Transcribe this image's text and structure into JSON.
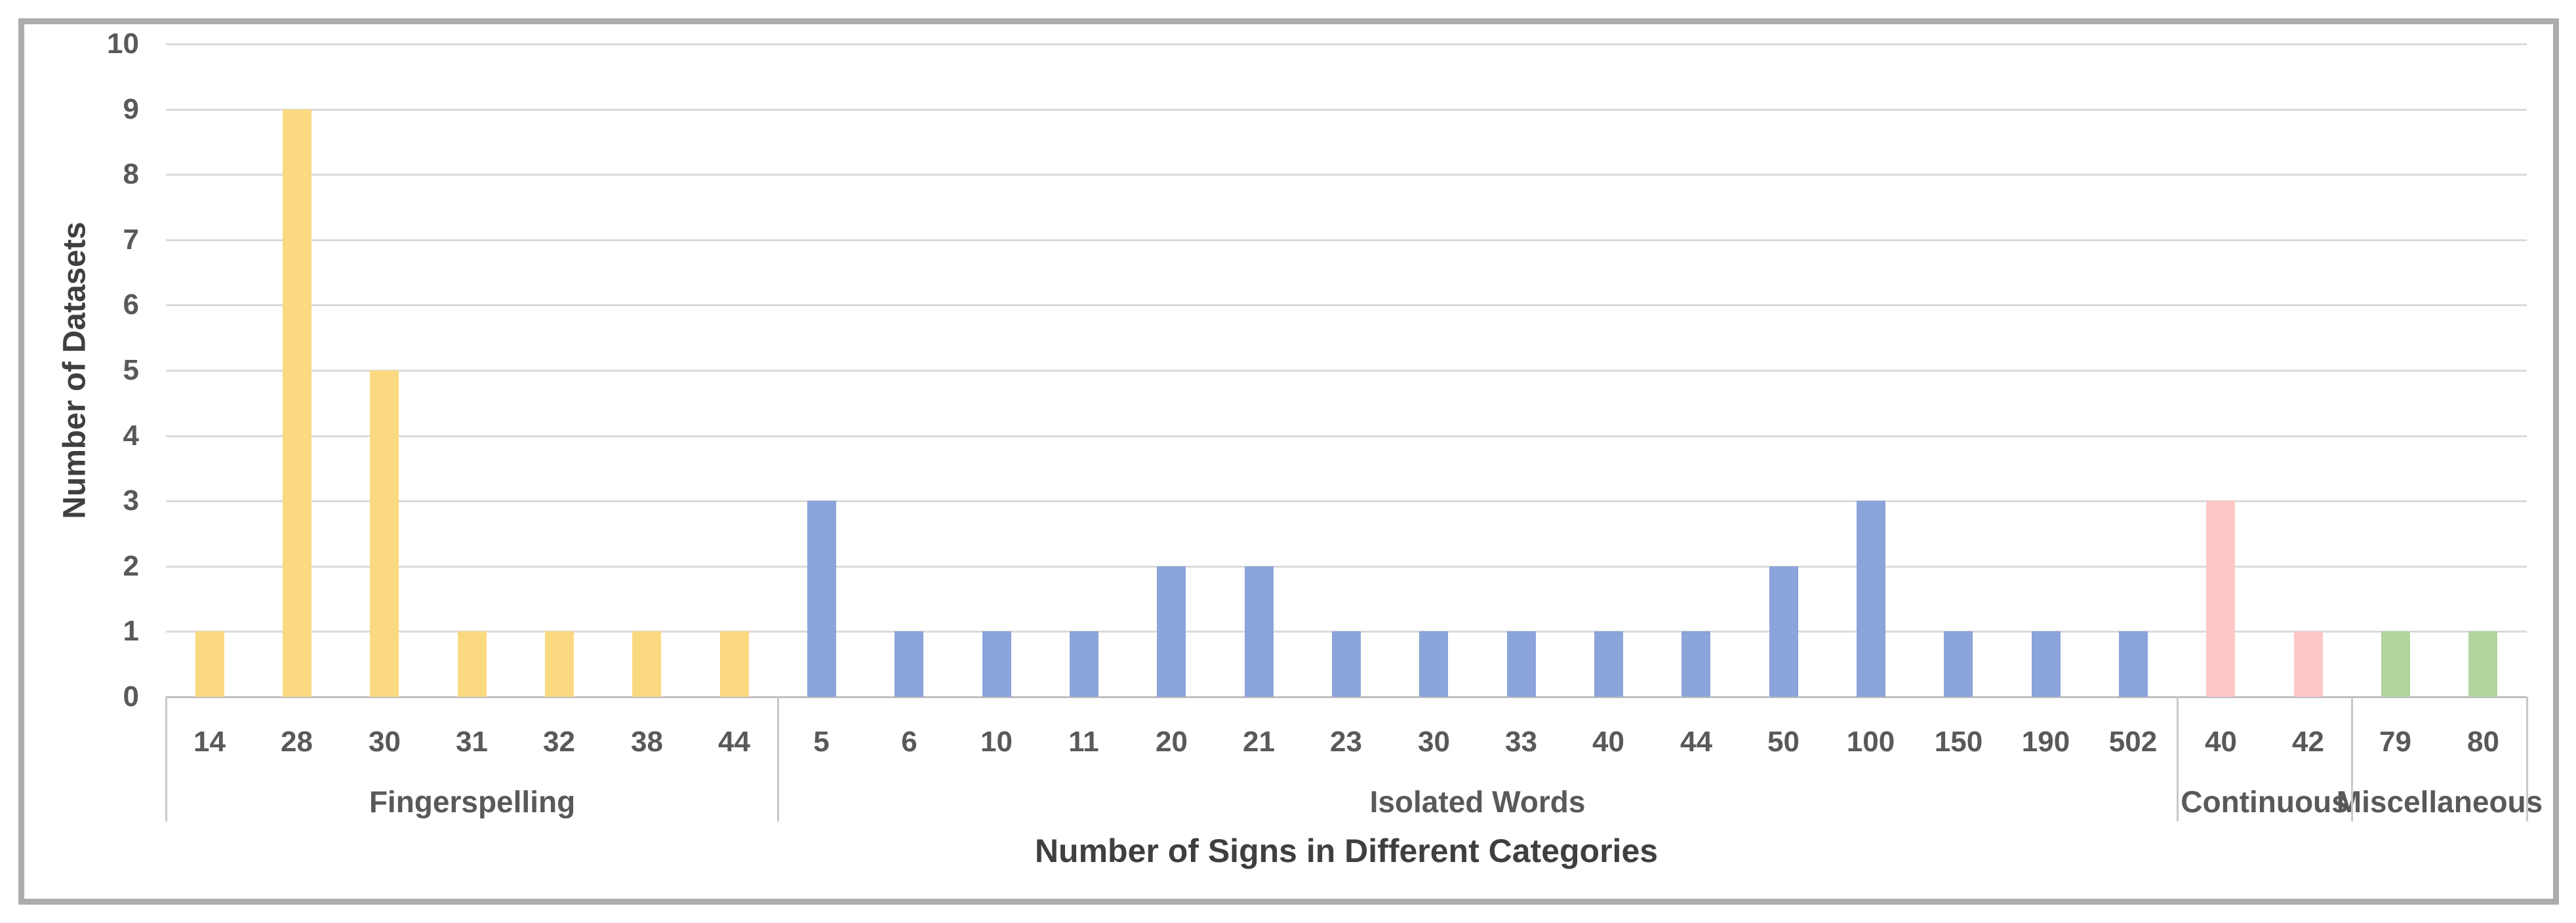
{
  "figure": {
    "border_color": "#ACACAC",
    "background": "#FFFFFF"
  },
  "chart_data": {
    "type": "bar",
    "title": "",
    "xlabel": "Number of Signs in Different Categories",
    "ylabel": "Number of Datasets",
    "ylim": [
      0,
      10
    ],
    "yticks": [
      0,
      1,
      2,
      3,
      4,
      5,
      6,
      7,
      8,
      9,
      10
    ],
    "grid": "horizontal",
    "legend": "none",
    "axis_text_color": "#595959",
    "title_text_color": "#3F3F3F",
    "gridline_color": "#DADADA",
    "axisline_color": "#BFBFBF",
    "divider_color": "#C8C8C8",
    "groups": [
      {
        "label": "Fingerspelling",
        "color": "#FAD980",
        "categories": [
          "14",
          "28",
          "30",
          "31",
          "32",
          "38",
          "44"
        ],
        "values": [
          1,
          9,
          5,
          1,
          1,
          1,
          1
        ]
      },
      {
        "label": "Isolated Words",
        "color": "#8BA4D9",
        "categories": [
          "5",
          "6",
          "10",
          "11",
          "20",
          "21",
          "23",
          "30",
          "33",
          "40",
          "44",
          "50",
          "100",
          "150",
          "190",
          "502"
        ],
        "values": [
          3,
          1,
          1,
          1,
          2,
          2,
          1,
          1,
          1,
          1,
          1,
          2,
          3,
          1,
          1,
          1
        ]
      },
      {
        "label": "Continuous",
        "color": "#FCC8C7",
        "categories": [
          "40",
          "42"
        ],
        "values": [
          3,
          1
        ]
      },
      {
        "label": "Miscellaneous",
        "color": "#B2D59E",
        "categories": [
          "79",
          "80"
        ],
        "values": [
          1,
          1
        ]
      }
    ]
  }
}
